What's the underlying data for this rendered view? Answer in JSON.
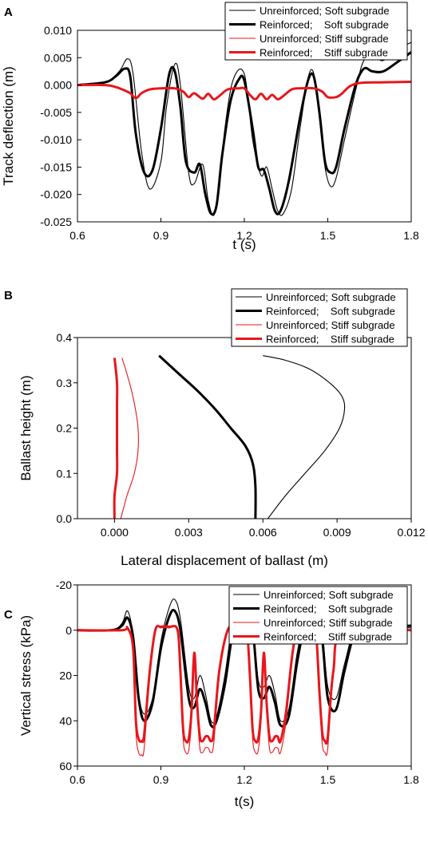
{
  "legend_labels": [
    "Unreinforced; Soft subgrade",
    "Reinforced;    Soft subgrade",
    "Unreinforced; Stiff subgrade",
    "Reinforced;    Stiff subgrade"
  ],
  "series_styles": [
    {
      "color": "#000000",
      "width": 1.1
    },
    {
      "color": "#000000",
      "width": 3.0
    },
    {
      "color": "#e8161b",
      "width": 1.1
    },
    {
      "color": "#e8161b",
      "width": 3.0
    }
  ],
  "chart_data": [
    {
      "panel": "A",
      "type": "line",
      "xlabel": "t (s)",
      "ylabel": "Track deflection (m)",
      "xlim": [
        0.6,
        1.8
      ],
      "ylim": [
        -0.025,
        0.01
      ],
      "xticks": [
        0.6,
        0.9,
        1.2,
        1.5,
        1.8
      ],
      "yticks": [
        -0.025,
        -0.02,
        -0.015,
        -0.01,
        -0.005,
        0.0,
        0.005,
        0.01
      ],
      "xtick_labels": [
        "0.6",
        "0.9",
        "1.2",
        "1.5",
        "1.8"
      ],
      "ytick_labels": [
        "-0.025",
        "-0.020",
        "-0.015",
        "-0.010",
        "-0.005",
        "0.000",
        "0.005",
        "0.010"
      ],
      "series": [
        {
          "name": "Unreinforced; Soft subgrade",
          "x": [
            0.6,
            0.7,
            0.75,
            0.78,
            0.8,
            0.83,
            0.86,
            0.9,
            0.92,
            0.95,
            0.97,
            1.0,
            1.02,
            1.05,
            1.07,
            1.09,
            1.11,
            1.13,
            1.16,
            1.2,
            1.23,
            1.26,
            1.28,
            1.3,
            1.32,
            1.34,
            1.37,
            1.4,
            1.43,
            1.45,
            1.47,
            1.49,
            1.51,
            1.53,
            1.56,
            1.6,
            1.63,
            1.67,
            1.7,
            1.75,
            1.8
          ],
          "y": [
            0.0,
            0.0005,
            0.0025,
            0.0048,
            0.002,
            -0.012,
            -0.019,
            -0.014,
            -0.004,
            0.0038,
            0.0,
            -0.016,
            -0.018,
            -0.0145,
            -0.021,
            -0.0238,
            -0.019,
            -0.008,
            0.001,
            0.002,
            -0.01,
            -0.0165,
            -0.015,
            -0.019,
            -0.023,
            -0.0235,
            -0.019,
            -0.008,
            0.0015,
            0.002,
            -0.006,
            -0.015,
            -0.0185,
            -0.017,
            -0.01,
            -0.001,
            0.0045,
            0.005,
            0.0045,
            0.0065,
            0.0078
          ]
        },
        {
          "name": "Reinforced;    Soft subgrade",
          "x": [
            0.6,
            0.7,
            0.74,
            0.77,
            0.79,
            0.81,
            0.84,
            0.87,
            0.9,
            0.93,
            0.95,
            0.97,
            0.99,
            1.02,
            1.04,
            1.06,
            1.08,
            1.1,
            1.12,
            1.15,
            1.18,
            1.2,
            1.23,
            1.25,
            1.27,
            1.29,
            1.31,
            1.33,
            1.36,
            1.4,
            1.43,
            1.45,
            1.47,
            1.49,
            1.51,
            1.53,
            1.56,
            1.6,
            1.63,
            1.66,
            1.7,
            1.75,
            1.8
          ],
          "y": [
            0.0,
            0.0005,
            0.0017,
            0.003,
            0.0015,
            -0.009,
            -0.016,
            -0.0155,
            -0.008,
            0.002,
            0.0025,
            -0.004,
            -0.014,
            -0.016,
            -0.0145,
            -0.02,
            -0.0235,
            -0.022,
            -0.013,
            -0.003,
            0.001,
            0.0008,
            -0.008,
            -0.015,
            -0.0155,
            -0.019,
            -0.023,
            -0.023,
            -0.0175,
            -0.006,
            0.001,
            0.0015,
            -0.005,
            -0.014,
            -0.016,
            -0.015,
            -0.008,
            0.0,
            0.003,
            0.0025,
            0.0025,
            0.0042,
            0.006
          ]
        },
        {
          "name": "Unreinforced; Stiff subgrade",
          "x": [
            0.6,
            0.7,
            0.74,
            0.77,
            0.79,
            0.81,
            0.83,
            0.86,
            0.9,
            0.95,
            0.98,
            1.0,
            1.02,
            1.05,
            1.07,
            1.09,
            1.11,
            1.14,
            1.18,
            1.2,
            1.22,
            1.24,
            1.26,
            1.28,
            1.3,
            1.32,
            1.34,
            1.37,
            1.4,
            1.45,
            1.48,
            1.5,
            1.53,
            1.55,
            1.58,
            1.62,
            1.7,
            1.8
          ],
          "y": [
            0.0,
            0.0,
            -0.0004,
            -0.001,
            -0.0015,
            -0.0024,
            -0.0015,
            -0.0008,
            -0.0006,
            -0.0006,
            -0.0012,
            -0.0022,
            -0.0015,
            -0.0025,
            -0.0016,
            -0.0026,
            -0.002,
            -0.0008,
            -0.0006,
            -0.0006,
            -0.0018,
            -0.0026,
            -0.0016,
            -0.0026,
            -0.0018,
            -0.0026,
            -0.002,
            -0.0008,
            -0.0006,
            -0.0006,
            -0.0012,
            -0.0022,
            -0.0022,
            -0.0016,
            -0.0002,
            0.0004,
            0.0005,
            0.0006
          ]
        },
        {
          "name": "Reinforced;    Stiff subgrade",
          "x": [
            0.6,
            0.7,
            0.74,
            0.77,
            0.79,
            0.81,
            0.83,
            0.86,
            0.9,
            0.95,
            0.98,
            1.0,
            1.02,
            1.05,
            1.07,
            1.09,
            1.11,
            1.14,
            1.18,
            1.2,
            1.22,
            1.24,
            1.26,
            1.28,
            1.3,
            1.32,
            1.34,
            1.37,
            1.4,
            1.45,
            1.48,
            1.5,
            1.53,
            1.55,
            1.58,
            1.62,
            1.7,
            1.8
          ],
          "y": [
            0.0,
            0.0,
            -0.0004,
            -0.001,
            -0.0015,
            -0.0024,
            -0.0015,
            -0.0008,
            -0.0006,
            -0.0006,
            -0.0012,
            -0.0022,
            -0.0015,
            -0.0025,
            -0.0016,
            -0.0026,
            -0.002,
            -0.0008,
            -0.0006,
            -0.0006,
            -0.0018,
            -0.0026,
            -0.0016,
            -0.0026,
            -0.0018,
            -0.0026,
            -0.002,
            -0.0008,
            -0.0006,
            -0.0006,
            -0.0012,
            -0.0022,
            -0.0022,
            -0.0016,
            -0.0002,
            0.0004,
            0.0005,
            0.0006
          ]
        }
      ]
    },
    {
      "panel": "B",
      "type": "line",
      "xlabel": "Lateral displacement of ballast (m)",
      "ylabel": "Ballast height (m)",
      "xlim": [
        -0.0015,
        0.012
      ],
      "ylim": [
        0.0,
        0.4
      ],
      "xticks": [
        0.0,
        0.003,
        0.006,
        0.009,
        0.012
      ],
      "yticks": [
        0.0,
        0.1,
        0.2,
        0.3,
        0.4
      ],
      "xtick_labels": [
        "0.000",
        "0.003",
        "0.006",
        "0.009",
        "0.012"
      ],
      "ytick_labels": [
        "0.0",
        "0.1",
        "0.2",
        "0.3",
        "0.4"
      ],
      "series": [
        {
          "name": "Unreinforced; Soft subgrade",
          "x": [
            0.0062,
            0.0069,
            0.0077,
            0.0085,
            0.0091,
            0.0093,
            0.0092,
            0.0087,
            0.0079,
            0.0069,
            0.006
          ],
          "y": [
            0.0,
            0.05,
            0.1,
            0.15,
            0.2,
            0.24,
            0.27,
            0.3,
            0.33,
            0.35,
            0.36
          ]
        },
        {
          "name": "Reinforced;    Soft subgrade",
          "x": [
            0.0057,
            0.0057,
            0.0056,
            0.0053,
            0.0047,
            0.0041,
            0.0034,
            0.0026,
            0.0018
          ],
          "y": [
            0.0,
            0.07,
            0.12,
            0.16,
            0.2,
            0.24,
            0.28,
            0.32,
            0.36
          ]
        },
        {
          "name": "Unreinforced; Stiff subgrade",
          "x": [
            0.00025,
            0.0005,
            0.0008,
            0.00095,
            0.00095,
            0.00085,
            0.0007,
            0.0005,
            0.0003
          ],
          "y": [
            0.0,
            0.05,
            0.1,
            0.15,
            0.2,
            0.24,
            0.28,
            0.32,
            0.355
          ]
        },
        {
          "name": "Reinforced;    Stiff subgrade",
          "x": [
            0.0,
            0.0,
            0.0001,
            0.0001,
            0.0001,
            0.0001,
            0.0001,
            0.0
          ],
          "y": [
            0.0,
            0.05,
            0.1,
            0.15,
            0.2,
            0.25,
            0.3,
            0.355
          ]
        }
      ]
    },
    {
      "panel": "C",
      "type": "line",
      "xlabel": "t(s)",
      "ylabel": "Vertical stress (kPa)",
      "xlim": [
        0.6,
        1.8
      ],
      "ylim": [
        60,
        -20
      ],
      "xticks": [
        0.6,
        0.9,
        1.2,
        1.5,
        1.8
      ],
      "yticks": [
        -20,
        0,
        20,
        40,
        60
      ],
      "xtick_labels": [
        "0.6",
        "0.9",
        "1.2",
        "1.5",
        "1.8"
      ],
      "ytick_labels": [
        "-20",
        "0",
        "20",
        "40",
        "60"
      ],
      "series": [
        {
          "name": "Unreinforced; Soft subgrade",
          "x": [
            0.6,
            0.72,
            0.76,
            0.78,
            0.8,
            0.82,
            0.84,
            0.87,
            0.9,
            0.93,
            0.95,
            0.97,
            1.0,
            1.02,
            1.04,
            1.06,
            1.08,
            1.1,
            1.13,
            1.16,
            1.19,
            1.21,
            1.23,
            1.25,
            1.27,
            1.29,
            1.31,
            1.33,
            1.36,
            1.39,
            1.42,
            1.44,
            1.46,
            1.48,
            1.5,
            1.53,
            1.56,
            1.6,
            1.65,
            1.7,
            1.8
          ],
          "y": [
            0.0,
            0.0,
            -3.0,
            -8.5,
            2.0,
            28.0,
            37.0,
            30.0,
            5.0,
            -10.0,
            -13.5,
            -5.0,
            25.0,
            30.0,
            20.0,
            28.0,
            40.0,
            38.0,
            20.0,
            -5.0,
            -11.0,
            -12.0,
            -3.0,
            22.0,
            25.0,
            20.0,
            28.0,
            40.0,
            35.0,
            10.0,
            -7.0,
            -12.0,
            -10.0,
            0.0,
            25.0,
            30.0,
            15.0,
            -2.0,
            -4.0,
            -2.0,
            -1.0
          ]
        },
        {
          "name": "Reinforced;    Soft subgrade",
          "x": [
            0.6,
            0.72,
            0.76,
            0.78,
            0.8,
            0.82,
            0.84,
            0.87,
            0.9,
            0.93,
            0.95,
            0.97,
            1.0,
            1.02,
            1.04,
            1.06,
            1.08,
            1.1,
            1.13,
            1.16,
            1.19,
            1.21,
            1.23,
            1.25,
            1.27,
            1.29,
            1.31,
            1.33,
            1.36,
            1.39,
            1.42,
            1.44,
            1.46,
            1.48,
            1.5,
            1.53,
            1.56,
            1.6,
            1.65,
            1.7,
            1.8
          ],
          "y": [
            0.0,
            0.0,
            -2.0,
            -5.5,
            3.0,
            30.0,
            40.0,
            32.0,
            8.0,
            -6.0,
            -8.5,
            0.0,
            30.0,
            34.0,
            26.0,
            32.0,
            42.0,
            40.0,
            24.0,
            0.0,
            -6.0,
            -10.0,
            -1.0,
            26.0,
            30.0,
            25.0,
            32.0,
            42.0,
            38.0,
            14.0,
            -4.0,
            -8.5,
            -6.0,
            4.0,
            30.0,
            35.0,
            18.0,
            0.0,
            -5.0,
            -2.0,
            -2.0
          ]
        },
        {
          "name": "Unreinforced; Stiff subgrade",
          "x": [
            0.6,
            0.76,
            0.78,
            0.8,
            0.81,
            0.82,
            0.83,
            0.84,
            0.86,
            0.88,
            0.9,
            0.93,
            0.96,
            0.97,
            0.98,
            0.99,
            1.0,
            1.01,
            1.02,
            1.03,
            1.04,
            1.05,
            1.06,
            1.07,
            1.08,
            1.09,
            1.11,
            1.14,
            1.17,
            1.2,
            1.21,
            1.22,
            1.23,
            1.24,
            1.25,
            1.26,
            1.27,
            1.28,
            1.29,
            1.3,
            1.31,
            1.32,
            1.33,
            1.35,
            1.38,
            1.42,
            1.45,
            1.46,
            1.47,
            1.48,
            1.49,
            1.5,
            1.52,
            1.56,
            1.8
          ],
          "y": [
            0.0,
            0.0,
            -1.0,
            10.0,
            45.0,
            54.0,
            55.0,
            52.0,
            20.0,
            0.0,
            -1.0,
            -1.0,
            0.0,
            20.0,
            48.0,
            54.0,
            53.0,
            40.0,
            10.0,
            35.0,
            52.0,
            54.0,
            52.0,
            52.0,
            54.0,
            50.0,
            20.0,
            0.0,
            -1.0,
            -1.0,
            0.0,
            22.0,
            48.0,
            54.0,
            53.0,
            40.0,
            10.0,
            35.0,
            52.0,
            54.0,
            52.0,
            52.0,
            54.0,
            40.0,
            5.0,
            -1.0,
            -1.0,
            5.0,
            30.0,
            50.0,
            54.0,
            52.0,
            20.0,
            0.0,
            0.0
          ]
        },
        {
          "name": "Reinforced;    Stiff subgrade",
          "x": [
            0.6,
            0.76,
            0.78,
            0.8,
            0.81,
            0.82,
            0.83,
            0.84,
            0.86,
            0.88,
            0.9,
            0.93,
            0.96,
            0.97,
            0.98,
            0.99,
            1.0,
            1.01,
            1.02,
            1.03,
            1.04,
            1.05,
            1.06,
            1.07,
            1.08,
            1.09,
            1.11,
            1.14,
            1.17,
            1.2,
            1.21,
            1.22,
            1.23,
            1.24,
            1.25,
            1.26,
            1.27,
            1.28,
            1.29,
            1.3,
            1.31,
            1.32,
            1.33,
            1.35,
            1.38,
            1.42,
            1.45,
            1.46,
            1.47,
            1.48,
            1.49,
            1.5,
            1.52,
            1.56,
            1.8
          ],
          "y": [
            0.0,
            0.0,
            -1.0,
            8.0,
            40.0,
            48.0,
            49.0,
            46.0,
            18.0,
            0.0,
            -1.5,
            -1.5,
            0.0,
            18.0,
            44.0,
            49.0,
            48.0,
            36.0,
            10.0,
            32.0,
            47.0,
            49.0,
            47.0,
            47.0,
            49.0,
            45.0,
            18.0,
            0.0,
            -1.5,
            -1.5,
            0.0,
            20.0,
            44.0,
            49.0,
            48.0,
            36.0,
            10.0,
            32.0,
            47.0,
            49.0,
            47.0,
            47.0,
            49.0,
            36.0,
            5.0,
            -1.5,
            -1.5,
            5.0,
            27.0,
            45.0,
            49.0,
            47.0,
            18.0,
            0.0,
            0.0
          ]
        }
      ]
    }
  ]
}
